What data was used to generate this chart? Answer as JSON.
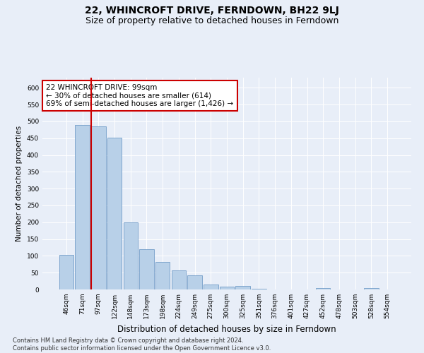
{
  "title": "22, WHINCROFT DRIVE, FERNDOWN, BH22 9LJ",
  "subtitle": "Size of property relative to detached houses in Ferndown",
  "xlabel": "Distribution of detached houses by size in Ferndown",
  "ylabel": "Number of detached properties",
  "categories": [
    "46sqm",
    "71sqm",
    "97sqm",
    "122sqm",
    "148sqm",
    "173sqm",
    "198sqm",
    "224sqm",
    "249sqm",
    "275sqm",
    "300sqm",
    "325sqm",
    "351sqm",
    "376sqm",
    "401sqm",
    "427sqm",
    "452sqm",
    "478sqm",
    "503sqm",
    "528sqm",
    "554sqm"
  ],
  "values": [
    103,
    490,
    485,
    451,
    200,
    120,
    82,
    57,
    41,
    15,
    9,
    11,
    2,
    1,
    1,
    0,
    5,
    0,
    0,
    5,
    0
  ],
  "bar_color": "#b8d0e8",
  "bar_edge_color": "#6090c0",
  "vline_x_index": 2,
  "vline_color": "#cc0000",
  "annotation_text": "22 WHINCROFT DRIVE: 99sqm\n← 30% of detached houses are smaller (614)\n69% of semi-detached houses are larger (1,426) →",
  "annotation_box_edgecolor": "#cc0000",
  "annotation_fontsize": 7.5,
  "ylim": [
    0,
    630
  ],
  "yticks": [
    0,
    50,
    100,
    150,
    200,
    250,
    300,
    350,
    400,
    450,
    500,
    550,
    600
  ],
  "background_color": "#e8eef8",
  "plot_bg_color": "#e8eef8",
  "grid_color": "#ffffff",
  "footnote": "Contains HM Land Registry data © Crown copyright and database right 2024.\nContains public sector information licensed under the Open Government Licence v3.0.",
  "title_fontsize": 10,
  "subtitle_fontsize": 9,
  "xlabel_fontsize": 8.5,
  "ylabel_fontsize": 7.5,
  "tick_fontsize": 6.5,
  "footnote_fontsize": 6
}
